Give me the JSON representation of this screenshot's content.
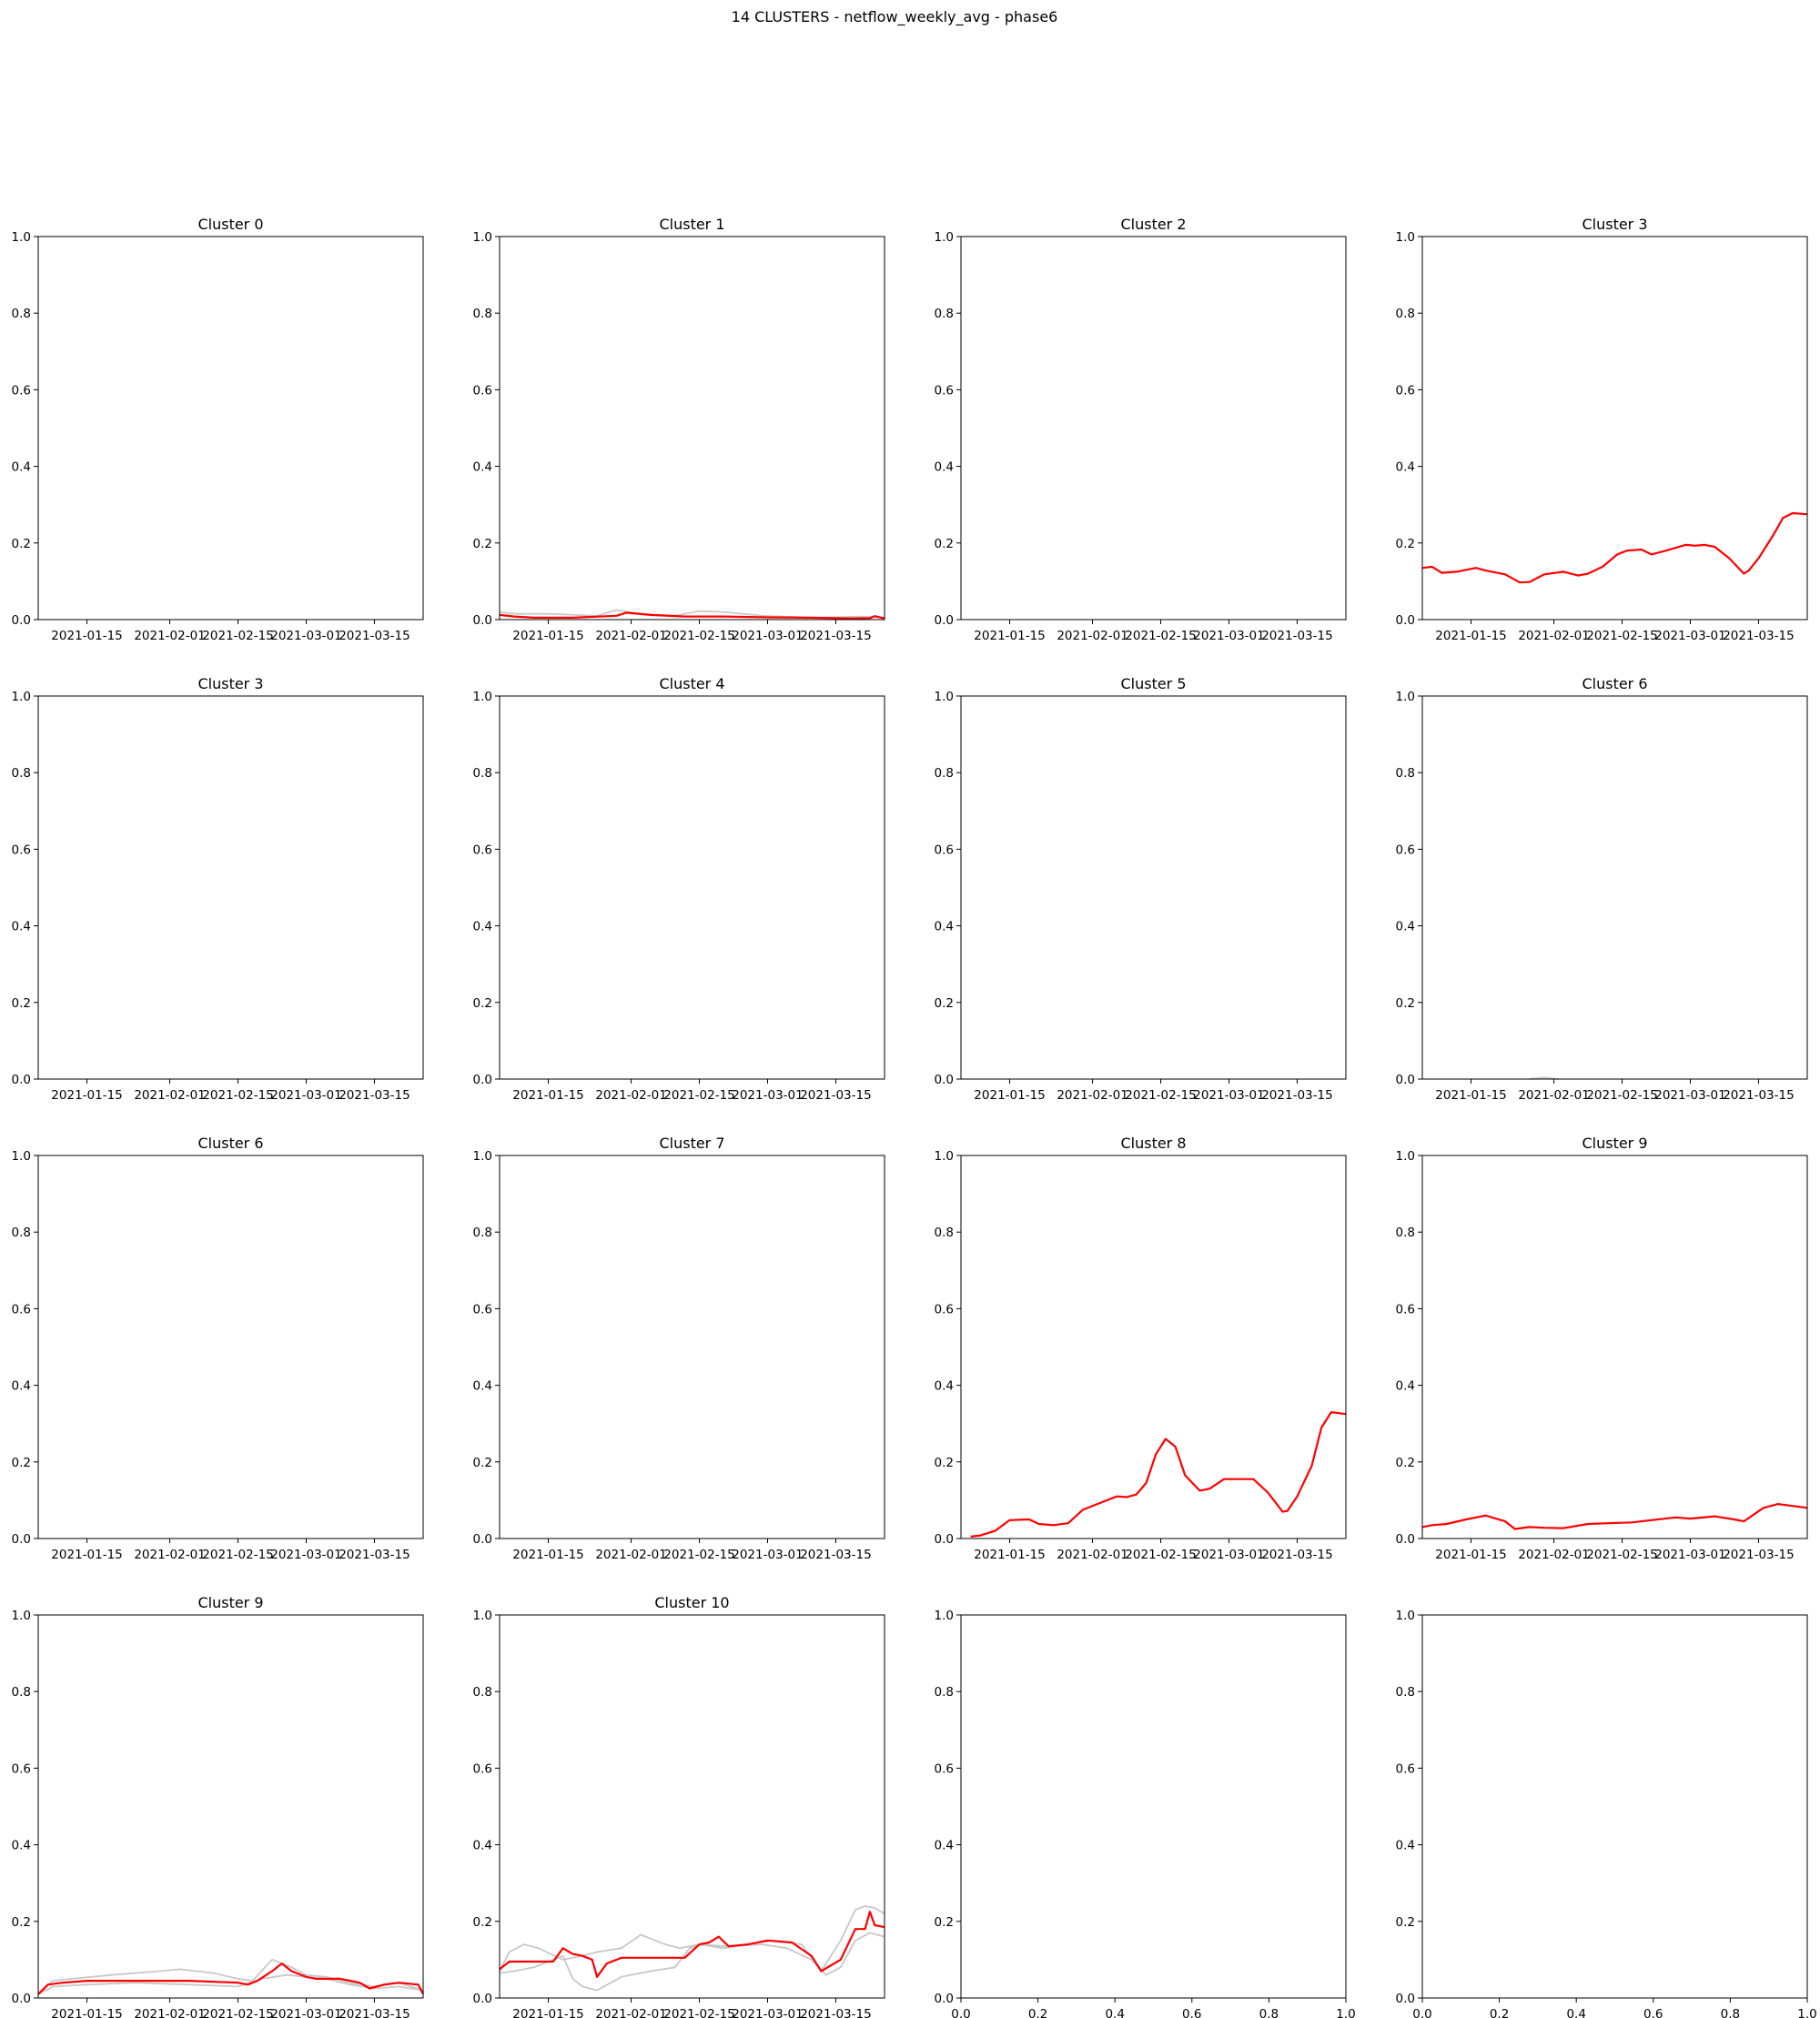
{
  "figure": {
    "suptitle": "14 CLUSTERS - netflow_weekly_avg - phase6"
  },
  "colors": {
    "representative": "#ff0000",
    "member": "#c8c8c8",
    "axes": "#000000"
  },
  "date_ticks": [
    "2021-01-15",
    "2021-02-01",
    "2021-02-15",
    "2021-03-01",
    "2021-03-15"
  ],
  "y_ticks": [
    "0.0",
    "0.2",
    "0.4",
    "0.6",
    "0.8",
    "1.0"
  ],
  "num_ticks": [
    "0.0",
    "0.2",
    "0.4",
    "0.6",
    "0.8",
    "1.0"
  ],
  "chart_data": [
    {
      "type": "line",
      "title": "Cluster 0",
      "xtype": "date",
      "xlim": [
        "2021-01-05",
        "2021-03-25"
      ],
      "ylim": [
        0,
        1
      ],
      "series": []
    },
    {
      "type": "line",
      "title": "Cluster 1",
      "xtype": "date",
      "xlim": [
        "2021-01-05",
        "2021-03-25"
      ],
      "ylim": [
        0,
        1
      ],
      "series": [
        {
          "role": "member",
          "x": [
            "2021-01-05",
            "2021-01-08",
            "2021-01-15",
            "2021-01-25",
            "2021-01-29",
            "2021-02-03",
            "2021-02-10",
            "2021-02-15",
            "2021-02-20",
            "2021-02-28",
            "2021-03-10",
            "2021-03-20",
            "2021-03-25"
          ],
          "y": [
            0.02,
            0.015,
            0.015,
            0.01,
            0.025,
            0.015,
            0.01,
            0.022,
            0.02,
            0.01,
            0.005,
            0.008,
            0.005
          ]
        },
        {
          "role": "representative",
          "x": [
            "2021-01-05",
            "2021-01-08",
            "2021-01-12",
            "2021-01-20",
            "2021-01-29",
            "2021-01-31",
            "2021-02-05",
            "2021-02-12",
            "2021-02-20",
            "2021-03-01",
            "2021-03-10",
            "2021-03-18",
            "2021-03-22",
            "2021-03-23",
            "2021-03-25"
          ],
          "y": [
            0.012,
            0.008,
            0.005,
            0.005,
            0.01,
            0.018,
            0.012,
            0.008,
            0.008,
            0.006,
            0.005,
            0.003,
            0.004,
            0.009,
            0.003
          ]
        }
      ]
    },
    {
      "type": "line",
      "title": "Cluster 2",
      "xtype": "date",
      "xlim": [
        "2021-01-05",
        "2021-03-25"
      ],
      "ylim": [
        0,
        1
      ],
      "series": []
    },
    {
      "type": "line",
      "title": "Cluster 3",
      "xtype": "date",
      "xlim": [
        "2021-01-05",
        "2021-03-25"
      ],
      "ylim": [
        0,
        1
      ],
      "series": [
        {
          "role": "representative",
          "x": [
            "2021-01-05",
            "2021-01-07",
            "2021-01-09",
            "2021-01-12",
            "2021-01-16",
            "2021-01-18",
            "2021-01-22",
            "2021-01-25",
            "2021-01-27",
            "2021-01-30",
            "2021-02-03",
            "2021-02-06",
            "2021-02-08",
            "2021-02-11",
            "2021-02-14",
            "2021-02-16",
            "2021-02-19",
            "2021-02-21",
            "2021-02-24",
            "2021-02-28",
            "2021-03-02",
            "2021-03-04",
            "2021-03-06",
            "2021-03-09",
            "2021-03-12",
            "2021-03-13",
            "2021-03-15",
            "2021-03-18",
            "2021-03-20",
            "2021-03-22",
            "2021-03-25"
          ],
          "y": [
            0.135,
            0.138,
            0.122,
            0.125,
            0.135,
            0.128,
            0.118,
            0.097,
            0.098,
            0.118,
            0.125,
            0.115,
            0.12,
            0.138,
            0.17,
            0.18,
            0.183,
            0.17,
            0.18,
            0.195,
            0.193,
            0.195,
            0.19,
            0.16,
            0.12,
            0.128,
            0.16,
            0.22,
            0.265,
            0.278,
            0.275
          ]
        }
      ]
    },
    {
      "type": "line",
      "title": "Cluster 3",
      "xtype": "date",
      "xlim": [
        "2021-01-05",
        "2021-03-25"
      ],
      "ylim": [
        0,
        1
      ],
      "series": []
    },
    {
      "type": "line",
      "title": "Cluster 4",
      "xtype": "date",
      "xlim": [
        "2021-01-05",
        "2021-03-25"
      ],
      "ylim": [
        0,
        1
      ],
      "series": []
    },
    {
      "type": "line",
      "title": "Cluster 5",
      "xtype": "date",
      "xlim": [
        "2021-01-05",
        "2021-03-25"
      ],
      "ylim": [
        0,
        1
      ],
      "series": []
    },
    {
      "type": "line",
      "title": "Cluster 6",
      "xtype": "date",
      "xlim": [
        "2021-01-05",
        "2021-03-25"
      ],
      "ylim": [
        0,
        1
      ],
      "series": [
        {
          "role": "member",
          "x": [
            "2021-01-27",
            "2021-01-30",
            "2021-02-02"
          ],
          "y": [
            0.0,
            0.004,
            0.0
          ]
        }
      ]
    },
    {
      "type": "line",
      "title": "Cluster 6",
      "xtype": "date",
      "xlim": [
        "2021-01-05",
        "2021-03-25"
      ],
      "ylim": [
        0,
        1
      ],
      "series": []
    },
    {
      "type": "line",
      "title": "Cluster 7",
      "xtype": "date",
      "xlim": [
        "2021-01-05",
        "2021-03-25"
      ],
      "ylim": [
        0,
        1
      ],
      "series": []
    },
    {
      "type": "line",
      "title": "Cluster 8",
      "xtype": "date",
      "xlim": [
        "2021-01-05",
        "2021-03-25"
      ],
      "ylim": [
        0,
        1
      ],
      "series": [
        {
          "role": "representative",
          "x": [
            "2021-01-07",
            "2021-01-09",
            "2021-01-12",
            "2021-01-15",
            "2021-01-19",
            "2021-01-21",
            "2021-01-24",
            "2021-01-27",
            "2021-01-30",
            "2021-02-03",
            "2021-02-06",
            "2021-02-08",
            "2021-02-10",
            "2021-02-12",
            "2021-02-14",
            "2021-02-16",
            "2021-02-18",
            "2021-02-20",
            "2021-02-23",
            "2021-02-25",
            "2021-02-28",
            "2021-03-02",
            "2021-03-04",
            "2021-03-06",
            "2021-03-09",
            "2021-03-12",
            "2021-03-13",
            "2021-03-15",
            "2021-03-18",
            "2021-03-20",
            "2021-03-22",
            "2021-03-25"
          ],
          "y": [
            0.005,
            0.008,
            0.02,
            0.048,
            0.05,
            0.038,
            0.035,
            0.04,
            0.075,
            0.095,
            0.11,
            0.108,
            0.115,
            0.145,
            0.22,
            0.26,
            0.24,
            0.165,
            0.125,
            0.13,
            0.155,
            0.155,
            0.155,
            0.155,
            0.12,
            0.07,
            0.072,
            0.11,
            0.19,
            0.29,
            0.33,
            0.325
          ]
        }
      ]
    },
    {
      "type": "line",
      "title": "Cluster 9",
      "xtype": "date",
      "xlim": [
        "2021-01-05",
        "2021-03-25"
      ],
      "ylim": [
        0,
        1
      ],
      "series": [
        {
          "role": "representative",
          "x": [
            "2021-01-05",
            "2021-01-07",
            "2021-01-10",
            "2021-01-14",
            "2021-01-18",
            "2021-01-22",
            "2021-01-24",
            "2021-01-27",
            "2021-01-30",
            "2021-02-03",
            "2021-02-08",
            "2021-02-12",
            "2021-02-17",
            "2021-02-21",
            "2021-02-26",
            "2021-03-01",
            "2021-03-06",
            "2021-03-10",
            "2021-03-12",
            "2021-03-16",
            "2021-03-19",
            "2021-03-22",
            "2021-03-25"
          ],
          "y": [
            0.03,
            0.035,
            0.038,
            0.05,
            0.06,
            0.045,
            0.025,
            0.03,
            0.028,
            0.027,
            0.038,
            0.04,
            0.042,
            0.048,
            0.055,
            0.052,
            0.058,
            0.05,
            0.045,
            0.08,
            0.09,
            0.085,
            0.08
          ]
        }
      ]
    },
    {
      "type": "line",
      "title": "Cluster 9",
      "xtype": "date",
      "xlim": [
        "2021-01-05",
        "2021-03-25"
      ],
      "ylim": [
        0,
        1
      ],
      "series": [
        {
          "role": "member",
          "x": [
            "2021-01-05",
            "2021-01-08",
            "2021-01-12",
            "2021-01-20",
            "2021-01-30",
            "2021-02-03",
            "2021-02-10",
            "2021-02-15",
            "2021-02-18",
            "2021-02-22",
            "2021-02-26",
            "2021-03-01",
            "2021-03-05",
            "2021-03-10",
            "2021-03-15",
            "2021-03-20",
            "2021-03-25"
          ],
          "y": [
            0.01,
            0.045,
            0.05,
            0.06,
            0.07,
            0.075,
            0.065,
            0.05,
            0.045,
            0.1,
            0.08,
            0.06,
            0.055,
            0.04,
            0.03,
            0.04,
            0.02
          ]
        },
        {
          "role": "member",
          "x": [
            "2021-01-05",
            "2021-01-08",
            "2021-01-15",
            "2021-01-25",
            "2021-02-05",
            "2021-02-15",
            "2021-02-20",
            "2021-02-25",
            "2021-03-05",
            "2021-03-10",
            "2021-03-15",
            "2021-03-20",
            "2021-03-25"
          ],
          "y": [
            0.01,
            0.03,
            0.035,
            0.04,
            0.035,
            0.03,
            0.05,
            0.06,
            0.05,
            0.035,
            0.025,
            0.03,
            0.02
          ]
        },
        {
          "role": "representative",
          "x": [
            "2021-01-05",
            "2021-01-07",
            "2021-01-10",
            "2021-01-15",
            "2021-01-25",
            "2021-02-05",
            "2021-02-15",
            "2021-02-17",
            "2021-02-19",
            "2021-02-22",
            "2021-02-24",
            "2021-02-26",
            "2021-03-01",
            "2021-03-03",
            "2021-03-08",
            "2021-03-12",
            "2021-03-14",
            "2021-03-17",
            "2021-03-20",
            "2021-03-24",
            "2021-03-25"
          ],
          "y": [
            0.01,
            0.035,
            0.04,
            0.045,
            0.045,
            0.045,
            0.04,
            0.035,
            0.045,
            0.07,
            0.09,
            0.07,
            0.055,
            0.05,
            0.05,
            0.04,
            0.025,
            0.035,
            0.04,
            0.035,
            0.01
          ]
        }
      ]
    },
    {
      "type": "line",
      "title": "Cluster 10",
      "xtype": "date",
      "xlim": [
        "2021-01-05",
        "2021-03-25"
      ],
      "ylim": [
        0,
        1
      ],
      "series": [
        {
          "role": "member",
          "x": [
            "2021-01-05",
            "2021-01-07",
            "2021-01-10",
            "2021-01-13",
            "2021-01-18",
            "2021-01-22",
            "2021-01-25",
            "2021-01-30",
            "2021-02-03",
            "2021-02-08",
            "2021-02-11",
            "2021-02-15",
            "2021-02-20",
            "2021-02-25",
            "2021-03-02",
            "2021-03-08",
            "2021-03-12",
            "2021-03-16",
            "2021-03-19",
            "2021-03-21",
            "2021-03-23",
            "2021-03-25"
          ],
          "y": [
            0.07,
            0.12,
            0.14,
            0.13,
            0.1,
            0.11,
            0.12,
            0.13,
            0.165,
            0.14,
            0.13,
            0.14,
            0.13,
            0.14,
            0.15,
            0.14,
            0.07,
            0.15,
            0.23,
            0.24,
            0.235,
            0.22
          ]
        },
        {
          "role": "member",
          "x": [
            "2021-01-05",
            "2021-01-08",
            "2021-01-12",
            "2021-01-18",
            "2021-01-20",
            "2021-01-22",
            "2021-01-25",
            "2021-01-30",
            "2021-02-05",
            "2021-02-10",
            "2021-02-13",
            "2021-02-16",
            "2021-02-20",
            "2021-02-28",
            "2021-03-05",
            "2021-03-10",
            "2021-03-13",
            "2021-03-16",
            "2021-03-19",
            "2021-03-22",
            "2021-03-25"
          ],
          "y": [
            0.065,
            0.07,
            0.08,
            0.11,
            0.05,
            0.03,
            0.02,
            0.055,
            0.07,
            0.08,
            0.13,
            0.14,
            0.135,
            0.14,
            0.13,
            0.1,
            0.06,
            0.08,
            0.15,
            0.17,
            0.16
          ]
        },
        {
          "role": "representative",
          "x": [
            "2021-01-05",
            "2021-01-07",
            "2021-01-11",
            "2021-01-16",
            "2021-01-18",
            "2021-01-20",
            "2021-01-22",
            "2021-01-24",
            "2021-01-25",
            "2021-01-27",
            "2021-01-30",
            "2021-02-05",
            "2021-02-12",
            "2021-02-15",
            "2021-02-17",
            "2021-02-19",
            "2021-02-21",
            "2021-02-25",
            "2021-03-01",
            "2021-03-06",
            "2021-03-10",
            "2021-03-12",
            "2021-03-16",
            "2021-03-19",
            "2021-03-21",
            "2021-03-22",
            "2021-03-23",
            "2021-03-25"
          ],
          "y": [
            0.075,
            0.095,
            0.095,
            0.095,
            0.13,
            0.115,
            0.11,
            0.1,
            0.055,
            0.09,
            0.105,
            0.105,
            0.105,
            0.14,
            0.145,
            0.16,
            0.135,
            0.14,
            0.15,
            0.145,
            0.11,
            0.07,
            0.1,
            0.18,
            0.18,
            0.225,
            0.19,
            0.185
          ]
        }
      ]
    },
    {
      "type": "line",
      "title": "",
      "xtype": "number",
      "xlim": [
        0,
        1
      ],
      "ylim": [
        0,
        1
      ],
      "series": []
    },
    {
      "type": "line",
      "title": "",
      "xtype": "number",
      "xlim": [
        0,
        1
      ],
      "ylim": [
        0,
        1
      ],
      "series": []
    }
  ]
}
